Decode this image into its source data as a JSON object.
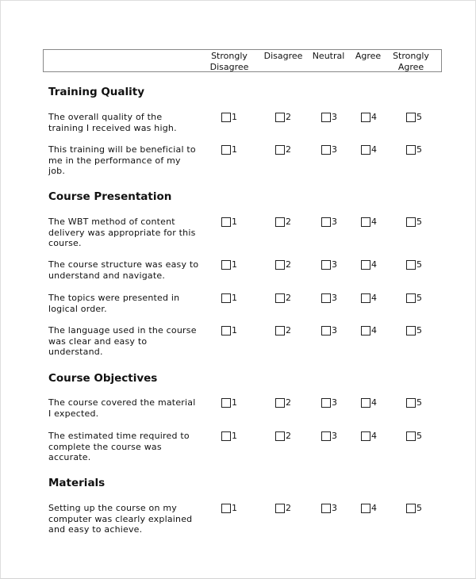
{
  "scale": [
    "Strongly Disagree",
    "Disagree",
    "Neutral",
    "Agree",
    "Strongly Agree"
  ],
  "options": [
    "1",
    "2",
    "3",
    "4",
    "5"
  ],
  "sections": [
    {
      "title": "Training Quality",
      "questions": [
        "The overall quality of the training I received was high.",
        "This training will be beneficial to me in the performance of my job."
      ]
    },
    {
      "title": "Course Presentation",
      "questions": [
        "The WBT method of content delivery was appropriate for this course.",
        "The course structure was easy to understand and navigate.",
        "The topics were presented in logical order.",
        "The language used in the course was clear and easy to understand."
      ]
    },
    {
      "title": "Course Objectives",
      "questions": [
        "The course covered the material I expected.",
        "The estimated time required to complete the course was accurate."
      ]
    },
    {
      "title": "Materials",
      "questions": [
        "Setting up the course on my computer was clearly explained and easy to achieve."
      ]
    }
  ]
}
